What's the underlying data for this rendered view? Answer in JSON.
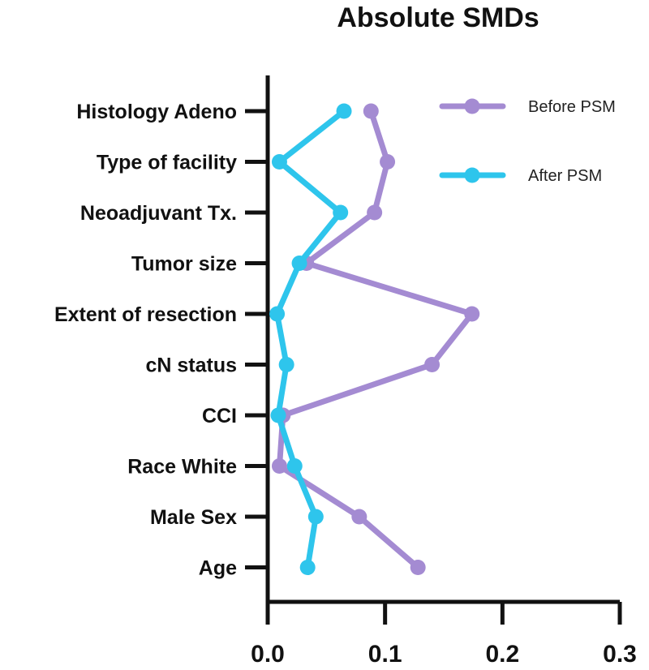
{
  "chart_data": {
    "type": "line",
    "title": "Absolute SMDs",
    "xlabel": "",
    "ylabel": "",
    "orientation": "horizontal-values",
    "xlim": [
      0.0,
      0.3
    ],
    "xticks": [
      0.0,
      0.1,
      0.2,
      0.3
    ],
    "xtick_labels": [
      "0.0",
      "0.1",
      "0.2",
      "0.3"
    ],
    "categories": [
      "Histology Adeno",
      "Type of facility",
      "Neoadjuvant Tx.",
      "Tumor size",
      "Extent of resection",
      "cN status",
      "CCI",
      "Race White",
      "Male Sex",
      "Age"
    ],
    "series": [
      {
        "name": "Before PSM",
        "color": "#A48BD2",
        "values": [
          0.088,
          0.102,
          0.091,
          0.033,
          0.174,
          0.14,
          0.013,
          0.01,
          0.078,
          0.128
        ]
      },
      {
        "name": "After PSM",
        "color": "#2EC5EC",
        "values": [
          0.065,
          0.01,
          0.062,
          0.027,
          0.008,
          0.016,
          0.009,
          0.023,
          0.041,
          0.034
        ]
      }
    ],
    "legend": "top-right",
    "grid": false
  }
}
